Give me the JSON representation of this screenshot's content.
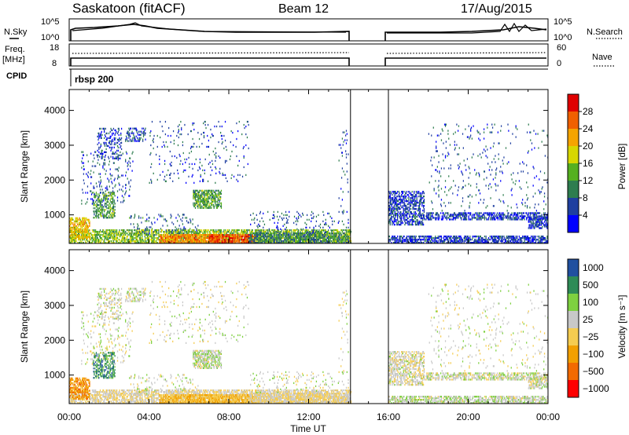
{
  "header": {
    "station": "Saskatoon (fitACF)",
    "beam": "Beam 12",
    "date": "17/Aug/2015"
  },
  "panels": {
    "nsky": {
      "label": "N.Sky",
      "tick_top": "10^5",
      "tick_bottom": "10^0"
    },
    "nsearch": {
      "label": "N.Search",
      "tick_top": "10^5",
      "tick_bottom": "10^0"
    },
    "freq": {
      "label_line1": "Freq.",
      "label_line2": "[MHz]",
      "tick_top": "18",
      "tick_bottom": "8"
    },
    "nave": {
      "label": "Nave",
      "tick_top": "60",
      "tick_bottom": "0"
    },
    "cpid": {
      "label": "CPID",
      "value": "rbsp 200"
    }
  },
  "colors": {
    "gap": "#ffffff",
    "power_scale": [
      "#0000ff",
      "#1f3fa0",
      "#2e7d4f",
      "#55b020",
      "#d7d700",
      "#f5a400",
      "#f06000",
      "#e00000"
    ],
    "velocity_scale": [
      "#ff0000",
      "#f26a00",
      "#f2a000",
      "#f5cc50",
      "#c8c8c8",
      "#7ed040",
      "#2e8b57",
      "#2050a0"
    ]
  },
  "chart_data": [
    {
      "type": "heatmap",
      "name": "power",
      "xlabel": "",
      "ylabel": "Slant Range [km]",
      "x_ticks": [
        "00:00",
        "04:00",
        "08:00",
        "12:00",
        "16:00",
        "20:00",
        "00:00"
      ],
      "x_range_hours": [
        0,
        24
      ],
      "y_range_km": [
        180,
        4600
      ],
      "y_ticks": [
        1000,
        2000,
        3000,
        4000
      ],
      "colorbar_label": "Power [dB]",
      "colorbar_ticks": [
        "4",
        "8",
        "12",
        "16",
        "20",
        "24",
        "28"
      ],
      "data_gap_hours": [
        14.1,
        16.0
      ]
    },
    {
      "type": "heatmap",
      "name": "velocity",
      "xlabel": "Time UT",
      "ylabel": "Slant Range [km]",
      "x_ticks": [
        "00:00",
        "04:00",
        "08:00",
        "12:00",
        "16:00",
        "20:00",
        "00:00"
      ],
      "x_range_hours": [
        0,
        24
      ],
      "y_range_km": [
        180,
        4600
      ],
      "y_ticks": [
        1000,
        2000,
        3000,
        4000
      ],
      "colorbar_label": "Velocity [m s⁻¹]",
      "colorbar_ticks": [
        "1000",
        "500",
        "100",
        "25",
        "−25",
        "−100",
        "−500",
        "−1000"
      ],
      "data_gap_hours": [
        14.1,
        16.0
      ]
    }
  ]
}
